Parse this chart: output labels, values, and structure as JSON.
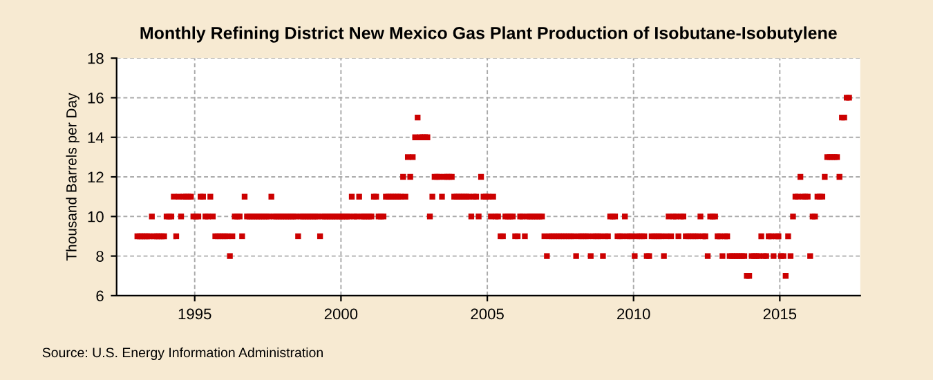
{
  "chart_data": {
    "type": "scatter",
    "title": "Monthly Refining District New Mexico Gas Plant Production of Isobutane-Isobutylene",
    "ylabel": "Thousand Barrels per Day",
    "annotations": [
      "Source: U.S. Energy Information Administration"
    ],
    "marker": "square",
    "grid": true,
    "xlim": [
      "1992-05-01",
      "2017-10-01"
    ],
    "ylim": [
      6,
      18
    ],
    "yticks": [
      6,
      8,
      10,
      12,
      14,
      16,
      18
    ],
    "xticks": [
      {
        "value": "1995",
        "label": "1995"
      },
      {
        "value": "2000",
        "label": "2000"
      },
      {
        "value": "2005",
        "label": "2005"
      },
      {
        "value": "2010",
        "label": "2010"
      },
      {
        "value": "2015",
        "label": "2015"
      }
    ],
    "series": [
      {
        "color": "#cc0000",
        "x": [
          "1993-01-15",
          "1993-02-15",
          "1993-03-15",
          "1993-04-15",
          "1993-05-15",
          "1993-06-15",
          "1993-07-15",
          "1993-08-15",
          "1993-09-15",
          "1993-10-15",
          "1993-11-15",
          "1993-12-15",
          "1994-01-15",
          "1994-02-15",
          "1994-03-15",
          "1994-04-15",
          "1994-05-15",
          "1994-06-15",
          "1994-07-15",
          "1994-08-15",
          "1994-09-15",
          "1994-10-15",
          "1994-11-15",
          "1994-12-15",
          "1995-01-15",
          "1995-02-15",
          "1995-03-15",
          "1995-04-15",
          "1995-05-15",
          "1995-06-15",
          "1995-07-15",
          "1995-08-15",
          "1995-09-15",
          "1995-10-15",
          "1995-11-15",
          "1995-12-15",
          "1996-01-15",
          "1996-02-15",
          "1996-03-15",
          "1996-04-15",
          "1996-05-15",
          "1996-06-15",
          "1996-07-15",
          "1996-08-15",
          "1996-09-15",
          "1996-10-15",
          "1996-11-15",
          "1996-12-15",
          "1997-01-15",
          "1997-02-15",
          "1997-03-15",
          "1997-04-15",
          "1997-05-15",
          "1997-06-15",
          "1997-07-15",
          "1997-08-15",
          "1997-09-15",
          "1997-10-15",
          "1997-11-15",
          "1997-12-15",
          "1998-01-15",
          "1998-02-15",
          "1998-03-15",
          "1998-04-15",
          "1998-05-15",
          "1998-06-15",
          "1998-07-15",
          "1998-08-15",
          "1998-09-15",
          "1998-10-15",
          "1998-11-15",
          "1998-12-15",
          "1999-01-15",
          "1999-02-15",
          "1999-03-15",
          "1999-04-15",
          "1999-05-15",
          "1999-06-15",
          "1999-07-15",
          "1999-08-15",
          "1999-09-15",
          "1999-10-15",
          "1999-11-15",
          "1999-12-15",
          "2000-01-15",
          "2000-02-15",
          "2000-03-15",
          "2000-04-15",
          "2000-05-15",
          "2000-06-15",
          "2000-07-15",
          "2000-08-15",
          "2000-09-15",
          "2000-10-15",
          "2000-11-15",
          "2000-12-15",
          "2001-01-15",
          "2001-02-15",
          "2001-03-15",
          "2001-04-15",
          "2001-05-15",
          "2001-06-15",
          "2001-07-15",
          "2001-08-15",
          "2001-09-15",
          "2001-10-15",
          "2001-11-15",
          "2001-12-15",
          "2002-01-15",
          "2002-02-15",
          "2002-03-15",
          "2002-04-15",
          "2002-05-15",
          "2002-06-15",
          "2002-07-15",
          "2002-08-15",
          "2002-09-15",
          "2002-10-15",
          "2002-11-15",
          "2002-12-15",
          "2003-01-15",
          "2003-02-15",
          "2003-03-15",
          "2003-04-15",
          "2003-05-15",
          "2003-06-15",
          "2003-07-15",
          "2003-08-15",
          "2003-09-15",
          "2003-10-15",
          "2003-11-15",
          "2003-12-15",
          "2004-01-15",
          "2004-02-15",
          "2004-03-15",
          "2004-04-15",
          "2004-05-15",
          "2004-06-15",
          "2004-07-15",
          "2004-08-15",
          "2004-09-15",
          "2004-10-15",
          "2004-11-15",
          "2004-12-15",
          "2005-01-15",
          "2005-02-15",
          "2005-03-15",
          "2005-04-15",
          "2005-05-15",
          "2005-06-15",
          "2005-07-15",
          "2005-08-15",
          "2005-09-15",
          "2005-10-15",
          "2005-11-15",
          "2005-12-15",
          "2006-01-15",
          "2006-02-15",
          "2006-03-15",
          "2006-04-15",
          "2006-05-15",
          "2006-06-15",
          "2006-07-15",
          "2006-08-15",
          "2006-09-15",
          "2006-10-15",
          "2006-11-15",
          "2006-12-15",
          "2007-01-15",
          "2007-02-15",
          "2007-03-15",
          "2007-04-15",
          "2007-05-15",
          "2007-06-15",
          "2007-07-15",
          "2007-08-15",
          "2007-09-15",
          "2007-10-15",
          "2007-11-15",
          "2007-12-15",
          "2008-01-15",
          "2008-02-15",
          "2008-03-15",
          "2008-04-15",
          "2008-05-15",
          "2008-06-15",
          "2008-07-15",
          "2008-08-15",
          "2008-09-15",
          "2008-10-15",
          "2008-11-15",
          "2008-12-15",
          "2009-01-15",
          "2009-02-15",
          "2009-03-15",
          "2009-04-15",
          "2009-05-15",
          "2009-06-15",
          "2009-07-15",
          "2009-08-15",
          "2009-09-15",
          "2009-10-15",
          "2009-11-15",
          "2009-12-15",
          "2010-01-15",
          "2010-02-15",
          "2010-03-15",
          "2010-04-15",
          "2010-05-15",
          "2010-06-15",
          "2010-07-15",
          "2010-08-15",
          "2010-09-15",
          "2010-10-15",
          "2010-11-15",
          "2010-12-15",
          "2011-01-15",
          "2011-02-15",
          "2011-03-15",
          "2011-04-15",
          "2011-05-15",
          "2011-06-15",
          "2011-07-15",
          "2011-08-15",
          "2011-09-15",
          "2011-10-15",
          "2011-11-15",
          "2011-12-15",
          "2012-01-15",
          "2012-02-15",
          "2012-03-15",
          "2012-04-15",
          "2012-05-15",
          "2012-06-15",
          "2012-07-15",
          "2012-08-15",
          "2012-09-15",
          "2012-10-15",
          "2012-11-15",
          "2012-12-15",
          "2013-01-15",
          "2013-02-15",
          "2013-03-15",
          "2013-04-15",
          "2013-05-15",
          "2013-06-15",
          "2013-07-15",
          "2013-08-15",
          "2013-09-15",
          "2013-10-15",
          "2013-11-15",
          "2013-12-15",
          "2014-01-15",
          "2014-02-15",
          "2014-03-15",
          "2014-04-15",
          "2014-05-15",
          "2014-06-15",
          "2014-07-15",
          "2014-08-15",
          "2014-09-15",
          "2014-10-15",
          "2014-11-15",
          "2014-12-15",
          "2015-01-15",
          "2015-02-15",
          "2015-03-15",
          "2015-04-15",
          "2015-05-15",
          "2015-06-15",
          "2015-07-15",
          "2015-08-15",
          "2015-09-15",
          "2015-10-15",
          "2015-11-15",
          "2015-12-15",
          "2016-01-15",
          "2016-02-15",
          "2016-03-15",
          "2016-04-15",
          "2016-05-15",
          "2016-06-15",
          "2016-07-15",
          "2016-08-15",
          "2016-09-15",
          "2016-10-15",
          "2016-11-15",
          "2016-12-15",
          "2017-01-15",
          "2017-02-15",
          "2017-03-15",
          "2017-04-15",
          "2017-05-15"
        ],
        "values": [
          9,
          9,
          9,
          9,
          9,
          9,
          10,
          9,
          9,
          9,
          9,
          9,
          10,
          10,
          10,
          11,
          9,
          11,
          10,
          11,
          11,
          11,
          11,
          10,
          10,
          10,
          11,
          11,
          10,
          10,
          11,
          10,
          9,
          9,
          9,
          9,
          9,
          9,
          8,
          9,
          10,
          10,
          10,
          9,
          11,
          10,
          10,
          10,
          10,
          10,
          10,
          10,
          10,
          10,
          10,
          11,
          10,
          10,
          10,
          10,
          10,
          10,
          10,
          10,
          10,
          10,
          9,
          10,
          10,
          10,
          10,
          10,
          10,
          10,
          10,
          9,
          10,
          10,
          10,
          10,
          10,
          10,
          10,
          10,
          10,
          10,
          10,
          10,
          11,
          10,
          10,
          11,
          10,
          10,
          10,
          10,
          10,
          11,
          11,
          10,
          10,
          10,
          11,
          11,
          11,
          11,
          11,
          11,
          11,
          12,
          11,
          13,
          12,
          13,
          14,
          15,
          14,
          14,
          14,
          14,
          10,
          11,
          12,
          12,
          12,
          11,
          12,
          12,
          12,
          12,
          11,
          11,
          11,
          11,
          11,
          11,
          11,
          10,
          11,
          11,
          10,
          12,
          11,
          11,
          11,
          10,
          11,
          10,
          10,
          9,
          9,
          10,
          10,
          10,
          10,
          9,
          9,
          10,
          10,
          9,
          10,
          10,
          10,
          10,
          10,
          10,
          10,
          9,
          8,
          9,
          9,
          9,
          9,
          9,
          9,
          9,
          9,
          9,
          9,
          9,
          8,
          9,
          9,
          9,
          9,
          9,
          8,
          9,
          9,
          9,
          9,
          8,
          9,
          9,
          10,
          10,
          10,
          9,
          9,
          9,
          10,
          9,
          9,
          9,
          8,
          9,
          9,
          9,
          9,
          8,
          8,
          9,
          9,
          9,
          9,
          9,
          8,
          9,
          10,
          9,
          10,
          10,
          9,
          10,
          10,
          9,
          9,
          9,
          9,
          9,
          9,
          10,
          9,
          9,
          8,
          10,
          10,
          10,
          9,
          9,
          8,
          9,
          9,
          8,
          8,
          8,
          8,
          8,
          8,
          8,
          7,
          7,
          8,
          8,
          8,
          8,
          9,
          8,
          8,
          9,
          9,
          8,
          9,
          9,
          8,
          8,
          7,
          9,
          8,
          10,
          11,
          11,
          12,
          11,
          11,
          11,
          8,
          10,
          10,
          11,
          11,
          11,
          12,
          13,
          13,
          13,
          13,
          13,
          12,
          15,
          15,
          16,
          16
        ]
      }
    ]
  }
}
